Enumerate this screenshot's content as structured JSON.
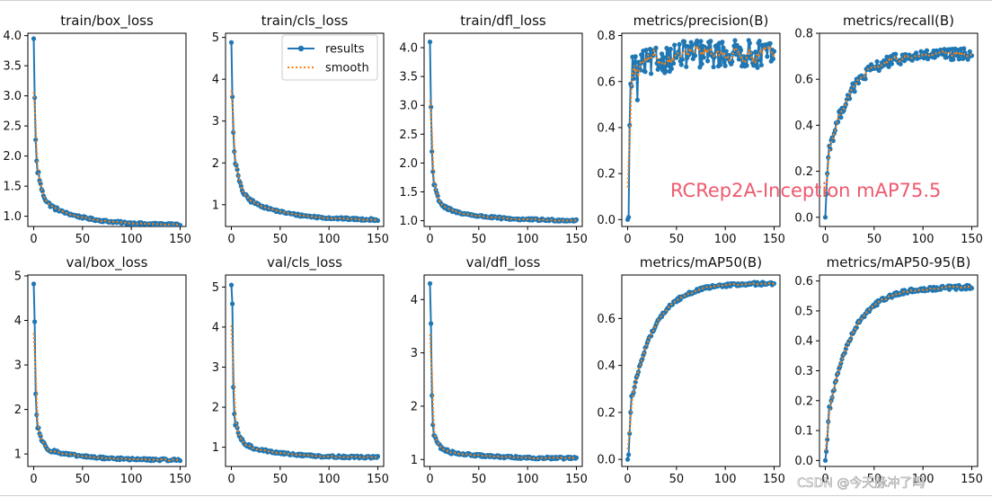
{
  "chart_data": [
    {
      "type": "line",
      "title": "train/box_loss",
      "xlim": [
        -6,
        156
      ],
      "ylim": [
        0.83,
        4.04
      ],
      "xticks": [
        0,
        50,
        100,
        150
      ],
      "yticks": [
        1.0,
        1.5,
        2.0,
        2.5,
        3.0,
        3.5,
        4.0
      ],
      "ytick_labels": [
        "1.0",
        "1.5",
        "2.0",
        "2.5",
        "3.0",
        "3.5",
        "4.0"
      ],
      "kind": "loss",
      "y_first": [
        3.95,
        2.97,
        2.27,
        1.92,
        1.72
      ],
      "y_plateau": 1.28,
      "y_end": 0.85,
      "series": [
        {
          "name": "results"
        },
        {
          "name": "smooth"
        }
      ]
    },
    {
      "type": "line",
      "title": "train/cls_loss",
      "xlim": [
        -6,
        156
      ],
      "ylim": [
        0.48,
        5.1
      ],
      "xticks": [
        0,
        50,
        100,
        150
      ],
      "yticks": [
        1,
        2,
        3,
        4,
        5
      ],
      "ytick_labels": [
        "1",
        "2",
        "3",
        "4",
        "5"
      ],
      "kind": "loss",
      "y_first": [
        4.88,
        3.58,
        2.73,
        2.27,
        1.98
      ],
      "y_plateau": 1.3,
      "y_end": 0.63,
      "series": [
        {
          "name": "results"
        },
        {
          "name": "smooth"
        }
      ],
      "legend": "top-right"
    },
    {
      "type": "line",
      "title": "train/dfl_loss",
      "xlim": [
        -6,
        156
      ],
      "ylim": [
        0.9,
        4.25
      ],
      "xticks": [
        0,
        50,
        100,
        150
      ],
      "yticks": [
        1.0,
        1.5,
        2.0,
        2.5,
        3.0,
        3.5,
        4.0
      ],
      "ytick_labels": [
        "1.0",
        "1.5",
        "2.0",
        "2.5",
        "3.0",
        "3.5",
        "4.0"
      ],
      "kind": "loss",
      "y_first": [
        4.1,
        2.97,
        2.2,
        1.85,
        1.62
      ],
      "y_plateau": 1.27,
      "y_end": 1.0,
      "series": [
        {
          "name": "results"
        },
        {
          "name": "smooth"
        }
      ]
    },
    {
      "type": "line",
      "title": "metrics/precision(B)",
      "xlim": [
        -6,
        156
      ],
      "ylim": [
        -0.03,
        0.81
      ],
      "xticks": [
        0,
        50,
        100,
        150
      ],
      "yticks": [
        0.0,
        0.2,
        0.4,
        0.6,
        0.8
      ],
      "ytick_labels": [
        "0.0",
        "0.2",
        "0.4",
        "0.6",
        "0.8"
      ],
      "kind": "precision",
      "y_first": [
        0.0,
        0.01,
        0.41,
        0.59,
        0.58
      ],
      "y_plateau": 0.66,
      "y_end": 0.72,
      "series": [
        {
          "name": "results"
        },
        {
          "name": "smooth"
        }
      ]
    },
    {
      "type": "line",
      "title": "metrics/recall(B)",
      "xlim": [
        -6,
        156
      ],
      "ylim": [
        -0.04,
        0.8
      ],
      "xticks": [
        0,
        50,
        100,
        150
      ],
      "yticks": [
        0.0,
        0.2,
        0.4,
        0.6,
        0.8
      ],
      "ytick_labels": [
        "0.0",
        "0.2",
        "0.4",
        "0.6",
        "0.8"
      ],
      "kind": "rise",
      "y_first": [
        0.0,
        0.1,
        0.19,
        0.26,
        0.31
      ],
      "y_plateau": 0.5,
      "y_end": 0.71,
      "series": [
        {
          "name": "results"
        },
        {
          "name": "smooth"
        }
      ]
    },
    {
      "type": "line",
      "title": "val/box_loss",
      "xlim": [
        -6,
        156
      ],
      "ylim": [
        0.72,
        5.02
      ],
      "xticks": [
        0,
        50,
        100,
        150
      ],
      "yticks": [
        1,
        2,
        3,
        4,
        5
      ],
      "ytick_labels": [
        "1",
        "2",
        "3",
        "4",
        "5"
      ],
      "kind": "loss",
      "y_first": [
        4.82,
        3.97,
        2.35,
        1.88,
        1.58
      ],
      "y_plateau": 1.15,
      "y_end": 0.86,
      "series": [
        {
          "name": "results"
        },
        {
          "name": "smooth"
        }
      ]
    },
    {
      "type": "line",
      "title": "val/cls_loss",
      "xlim": [
        -6,
        156
      ],
      "ylim": [
        0.52,
        5.3
      ],
      "xticks": [
        0,
        50,
        100,
        150
      ],
      "yticks": [
        1,
        2,
        3,
        4,
        5
      ],
      "ytick_labels": [
        "1",
        "2",
        "3",
        "4",
        "5"
      ],
      "kind": "loss",
      "y_first": [
        5.05,
        4.58,
        2.5,
        1.83,
        1.55
      ],
      "y_plateau": 1.12,
      "y_end": 0.74,
      "series": [
        {
          "name": "results"
        },
        {
          "name": "smooth"
        }
      ]
    },
    {
      "type": "line",
      "title": "val/dfl_loss",
      "xlim": [
        -6,
        156
      ],
      "ylim": [
        0.87,
        4.46
      ],
      "xticks": [
        0,
        50,
        100,
        150
      ],
      "yticks": [
        1,
        2,
        3,
        4
      ],
      "ytick_labels": [
        "1",
        "2",
        "3",
        "4"
      ],
      "kind": "loss",
      "y_first": [
        4.3,
        3.55,
        2.2,
        1.65,
        1.45
      ],
      "y_plateau": 1.2,
      "y_end": 1.02,
      "series": [
        {
          "name": "results"
        },
        {
          "name": "smooth"
        }
      ]
    },
    {
      "type": "line",
      "title": "metrics/mAP50(B)",
      "xlim": [
        -6,
        156
      ],
      "ylim": [
        -0.03,
        0.785
      ],
      "xticks": [
        0,
        50,
        100,
        150
      ],
      "yticks": [
        0.0,
        0.2,
        0.4,
        0.6
      ],
      "ytick_labels": [
        "0.0",
        "0.2",
        "0.4",
        "0.6"
      ],
      "kind": "rise",
      "y_first": [
        0.0,
        0.02,
        0.11,
        0.2,
        0.27
      ],
      "y_plateau": 0.5,
      "y_end": 0.75,
      "series": [
        {
          "name": "results"
        },
        {
          "name": "smooth"
        }
      ]
    },
    {
      "type": "line",
      "title": "metrics/mAP50-95(B)",
      "xlim": [
        -6,
        156
      ],
      "ylim": [
        -0.02,
        0.62
      ],
      "xticks": [
        0,
        50,
        100,
        150
      ],
      "yticks": [
        0.0,
        0.1,
        0.2,
        0.3,
        0.4,
        0.5,
        0.6
      ],
      "ytick_labels": [
        "0.0",
        "0.1",
        "0.2",
        "0.3",
        "0.4",
        "0.5",
        "0.6"
      ],
      "kind": "rise",
      "y_first": [
        0.0,
        0.03,
        0.07,
        0.13,
        0.18
      ],
      "y_plateau": 0.42,
      "y_end": 0.58,
      "series": [
        {
          "name": "results"
        },
        {
          "name": "smooth"
        }
      ]
    }
  ],
  "legend": {
    "results": "results",
    "smooth": "smooth"
  },
  "watermark": "RCRep2A-Inception mAP75.5",
  "credit": "CSDN @今天脉冲了吗",
  "colors": {
    "results": "#1f77b4",
    "smooth": "#ff7f0e",
    "watermark": "#ee5a6f"
  }
}
